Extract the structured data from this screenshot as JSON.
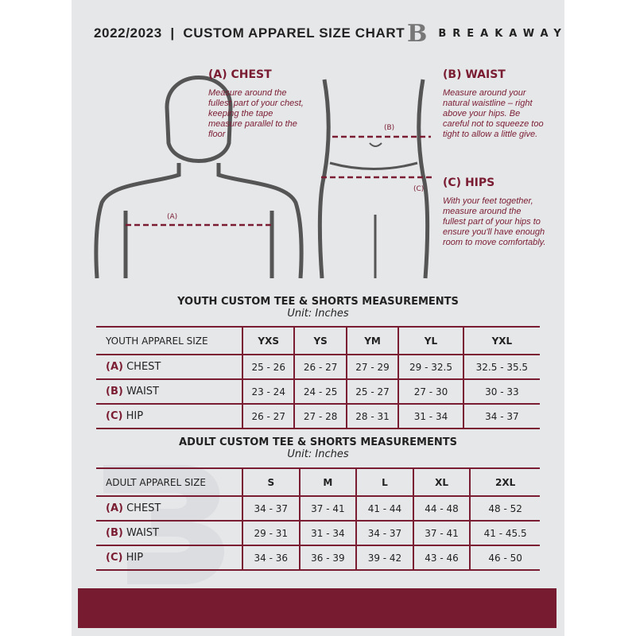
{
  "header": {
    "title": "2022/2023  |  CUSTOM APPAREL SIZE CHART",
    "brand": "BREAKAWAY",
    "logo_letter": "B"
  },
  "measures": {
    "chest": {
      "title": "(A) CHEST",
      "desc": "Measure around the fullest part of your chest, keeping the tape measure parallel to the floor",
      "marker": "(A)"
    },
    "waist": {
      "title": "(B) WAIST",
      "desc": "Measure around your natural waistline – right above your hips. Be careful not to squeeze too tight to allow a little give.",
      "marker": "(B)"
    },
    "hips": {
      "title": "(C) HIPS",
      "desc": "With your feet together, measure around the fullest part of your hips to ensure you'll have enough room to move comfortably.",
      "marker": "(C)"
    }
  },
  "youth": {
    "title": "YOUTH CUSTOM TEE & SHORTS MEASUREMENTS",
    "unit": "Unit: Inches",
    "header": [
      "YOUTH APPAREL SIZE",
      "YXS",
      "YS",
      "YM",
      "YL",
      "YXL"
    ],
    "rows": [
      {
        "letter": "(A)",
        "label": "CHEST",
        "values": [
          "25 - 26",
          "26 - 27",
          "27 - 29",
          "29 - 32.5",
          "32.5 - 35.5"
        ]
      },
      {
        "letter": "(B)",
        "label": "WAIST",
        "values": [
          "23 - 24",
          "24 - 25",
          "25 - 27",
          "27 - 30",
          "30 - 33"
        ]
      },
      {
        "letter": "(C)",
        "label": "HIP",
        "values": [
          "26 - 27",
          "27 - 28",
          "28 - 31",
          "31 - 34",
          "34 - 37"
        ]
      }
    ]
  },
  "adult": {
    "title": "ADULT CUSTOM TEE & SHORTS MEASUREMENTS",
    "unit": "Unit: Inches",
    "header": [
      "ADULT APPAREL SIZE",
      "S",
      "M",
      "L",
      "XL",
      "2XL"
    ],
    "rows": [
      {
        "letter": "(A)",
        "label": "CHEST",
        "values": [
          "34 - 37",
          "37 - 41",
          "41 - 44",
          "44 - 48",
          "48 - 52"
        ]
      },
      {
        "letter": "(B)",
        "label": "WAIST",
        "values": [
          "29 - 31",
          "31 - 34",
          "34 - 37",
          "37 - 41",
          "41 - 45.5"
        ]
      },
      {
        "letter": "(C)",
        "label": "HIP",
        "values": [
          "34 - 36",
          "36 - 39",
          "39 - 42",
          "43 - 46",
          "46 - 50"
        ]
      }
    ]
  },
  "colors": {
    "accent": "#7a1c32",
    "panel": "#e6e7e9"
  }
}
